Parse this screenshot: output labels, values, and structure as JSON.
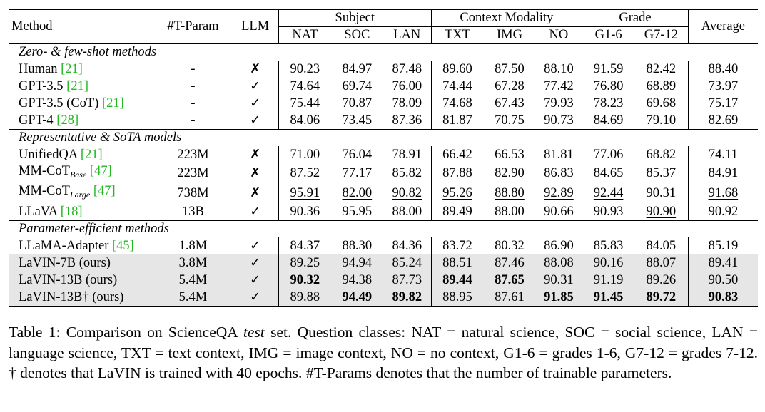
{
  "header": {
    "method": "Method",
    "tparam": "#T-Param",
    "llm": "LLM",
    "group_subject": "Subject",
    "group_context": "Context Modality",
    "group_grade": "Grade",
    "average": "Average",
    "cols": [
      "NAT",
      "SOC",
      "LAN",
      "TXT",
      "IMG",
      "NO",
      "G1-6",
      "G7-12"
    ]
  },
  "groups": [
    {
      "title": "Zero- & few-shot methods",
      "rows": [
        {
          "method": "Human",
          "cite": "[21]",
          "tparam": "-",
          "llm": "✗",
          "values": [
            "90.23",
            "84.97",
            "87.48",
            "89.60",
            "87.50",
            "88.10",
            "91.59",
            "82.42"
          ],
          "avg": "88.40"
        },
        {
          "method": "GPT-3.5",
          "cite": "[21]",
          "tparam": "-",
          "llm": "✓",
          "values": [
            "74.64",
            "69.74",
            "76.00",
            "74.44",
            "67.28",
            "77.42",
            "76.80",
            "68.89"
          ],
          "avg": "73.97"
        },
        {
          "method": "GPT-3.5 (CoT)",
          "cite": "[21]",
          "tparam": "-",
          "llm": "✓",
          "values": [
            "75.44",
            "70.87",
            "78.09",
            "74.68",
            "67.43",
            "79.93",
            "78.23",
            "69.68"
          ],
          "avg": "75.17"
        },
        {
          "method": "GPT-4",
          "cite": "[28]",
          "tparam": "-",
          "llm": "✓",
          "values": [
            "84.06",
            "73.45",
            "87.36",
            "81.87",
            "70.75",
            "90.73",
            "84.69",
            "79.10"
          ],
          "avg": "82.69"
        }
      ]
    },
    {
      "title": "Representative & SoTA models",
      "rows": [
        {
          "method": "UnifiedQA",
          "cite": "[21]",
          "tparam": "223M",
          "llm": "✗",
          "values": [
            "71.00",
            "76.04",
            "78.91",
            "66.42",
            "66.53",
            "81.81",
            "77.06",
            "68.82"
          ],
          "avg": "74.11"
        },
        {
          "method": "MM-CoT",
          "sub": "Base",
          "cite": "[47]",
          "tparam": "223M",
          "llm": "✗",
          "values": [
            "87.52",
            "77.17",
            "85.82",
            "87.88",
            "82.90",
            "86.83",
            "84.65",
            "85.37"
          ],
          "avg": "84.91"
        },
        {
          "method": "MM-CoT",
          "sub": "Large",
          "cite": "[47]",
          "tparam": "738M",
          "llm": "✗",
          "values": [
            "95.91",
            "82.00",
            "90.82",
            "95.26",
            "88.80",
            "92.89",
            "92.44",
            "90.31"
          ],
          "avg": "91.68"
        },
        {
          "method": "LLaVA",
          "cite": "[18]",
          "tparam": "13B",
          "llm": "✓",
          "values": [
            "90.36",
            "95.95",
            "88.00",
            "89.49",
            "88.00",
            "90.66",
            "90.93",
            "90.90"
          ],
          "avg": "90.92"
        }
      ]
    },
    {
      "title": "Parameter-efficient methods",
      "rows": [
        {
          "method": "LLaMA-Adapter",
          "cite": "[45]",
          "tparam": "1.8M",
          "llm": "✓",
          "values": [
            "84.37",
            "88.30",
            "84.36",
            "83.72",
            "80.32",
            "86.90",
            "85.83",
            "84.05"
          ],
          "avg": "85.19"
        },
        {
          "method": "LaVIN-7B (ours)",
          "cite": "",
          "tparam": "3.8M",
          "llm": "✓",
          "values": [
            "89.25",
            "94.94",
            "85.24",
            "88.51",
            "87.46",
            "88.08",
            "90.16",
            "88.07"
          ],
          "avg": "89.41"
        },
        {
          "method": "LaVIN-13B (ours)",
          "cite": "",
          "tparam": "5.4M",
          "llm": "✓",
          "values": [
            "90.32",
            "94.38",
            "87.73",
            "89.44",
            "87.65",
            "90.31",
            "91.19",
            "89.26"
          ],
          "avg": "90.50"
        },
        {
          "method": "LaVIN-13B† (ours)",
          "cite": "",
          "tparam": "5.4M",
          "llm": "✓",
          "values": [
            "89.88",
            "94.49",
            "89.82",
            "88.95",
            "87.61",
            "91.85",
            "91.45",
            "89.72"
          ],
          "avg": "90.83"
        }
      ]
    }
  ],
  "caption": {
    "lead": "Table 1: Comparison on ScienceQA ",
    "italic": "test",
    "rest": " set. Question classes: NAT = natural science, SOC = social science, LAN = language science, TXT = text context, IMG = image context, NO = no context, G1-6 = grades 1-6, G7-12 = grades 7-12. † denotes that LaVIN is trained with 40 epochs. #T-Params denotes that the number of trainable parameters."
  }
}
